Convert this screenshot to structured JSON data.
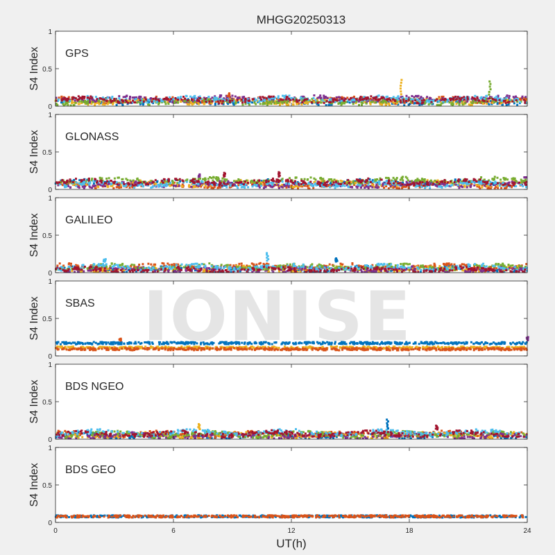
{
  "chart_data": {
    "type": "scatter",
    "title": "MHGG20250313",
    "xlabel": "UT(h)",
    "ylabel": "S4 Index",
    "xlim": [
      0,
      24
    ],
    "ylim": [
      0,
      1
    ],
    "x_ticks": [
      "0",
      "6",
      "12",
      "18",
      "24"
    ],
    "y_ticks": [
      "0",
      "0.5",
      "1"
    ],
    "watermark": "IONISE",
    "series_colors": [
      "#0072bd",
      "#d95319",
      "#edb120",
      "#7e2f8e",
      "#77ac30",
      "#4dbeee",
      "#a2142f"
    ],
    "panels": [
      {
        "name": "GPS",
        "typical_s4": [
          0.04,
          0.12
        ],
        "peaks": [
          {
            "ut": 17.6,
            "s4": 0.35
          },
          {
            "ut": 22.1,
            "s4": 0.33
          },
          {
            "ut": 8.8,
            "s4": 0.17
          }
        ]
      },
      {
        "name": "GLONASS",
        "typical_s4": [
          0.03,
          0.16
        ],
        "peaks": [
          {
            "ut": 8.6,
            "s4": 0.22
          },
          {
            "ut": 11.4,
            "s4": 0.23
          },
          {
            "ut": 7.3,
            "s4": 0.2
          },
          {
            "ut": 23.9,
            "s4": 0.16
          }
        ]
      },
      {
        "name": "GALILEO",
        "typical_s4": [
          0.03,
          0.14
        ],
        "peaks": [
          {
            "ut": 10.8,
            "s4": 0.26
          },
          {
            "ut": 14.3,
            "s4": 0.19
          },
          {
            "ut": 2.5,
            "s4": 0.18
          }
        ]
      },
      {
        "name": "SBAS",
        "typical_s4": [
          0.08,
          0.2
        ],
        "peaks": [
          {
            "ut": 3.3,
            "s4": 0.23
          },
          {
            "ut": 24.0,
            "s4": 0.25
          }
        ]
      },
      {
        "name": "BDS NGEO",
        "typical_s4": [
          0.03,
          0.12
        ],
        "peaks": [
          {
            "ut": 16.9,
            "s4": 0.26
          },
          {
            "ut": 7.3,
            "s4": 0.2
          },
          {
            "ut": 19.4,
            "s4": 0.18
          }
        ]
      },
      {
        "name": "BDS GEO",
        "typical_s4": [
          0.07,
          0.09
        ],
        "peaks": []
      }
    ]
  }
}
